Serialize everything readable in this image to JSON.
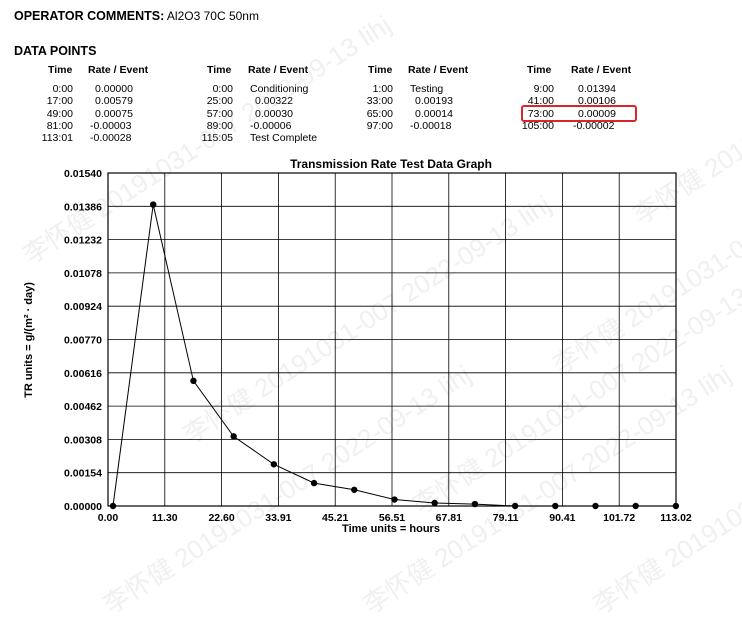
{
  "operator": {
    "label": "OPERATOR COMMENTS:",
    "value": "Al2O3  70C 50nm"
  },
  "data_points": {
    "title": "DATA POINTS",
    "col_time": "Time",
    "col_rate": "Rate / Event",
    "columns": [
      [
        [
          "0:00",
          "0.00000"
        ],
        [
          "17:00",
          "0.00579"
        ],
        [
          "49:00",
          "0.00075"
        ],
        [
          "81:00",
          "-0.00003"
        ],
        [
          "113:01",
          "-0.00028"
        ]
      ],
      [
        [
          "0:00",
          "Conditioning"
        ],
        [
          "25:00",
          "0.00322"
        ],
        [
          "57:00",
          "0.00030"
        ],
        [
          "89:00",
          "-0.00006"
        ],
        [
          "115:05",
          "Test Complete"
        ]
      ],
      [
        [
          "1:00",
          "Testing"
        ],
        [
          "33:00",
          "0.00193"
        ],
        [
          "65:00",
          "0.00014"
        ],
        [
          "97:00",
          "-0.00018"
        ]
      ],
      [
        [
          "9:00",
          "0.01394"
        ],
        [
          "41:00",
          "0.00106"
        ],
        [
          "73:00",
          "0.00009"
        ],
        [
          "105:00",
          "-0.00002"
        ]
      ]
    ]
  },
  "watermark_text": "李怀健 20191031-007 2022-09-13 lihj",
  "colors": {
    "highlight": "#d9262b",
    "line": "#000000",
    "grid": "#000000"
  },
  "chart_data": {
    "type": "line",
    "title": "Transmission Rate Test Data Graph",
    "xlabel": "Time units = hours",
    "ylabel": "TR units = g/(m² · day)",
    "xlim": [
      0,
      113.02
    ],
    "ylim": [
      0,
      0.0154
    ],
    "x_ticks": [
      "0.00",
      "11.30",
      "22.60",
      "33.91",
      "45.21",
      "56.51",
      "67.81",
      "79.11",
      "90.41",
      "101.72",
      "113.02"
    ],
    "y_ticks": [
      "0.00000",
      "0.00154",
      "0.00308",
      "0.00462",
      "0.00616",
      "0.00770",
      "0.00924",
      "0.01078",
      "0.01232",
      "0.01386",
      "0.01540"
    ],
    "grid": true,
    "series": [
      {
        "x": [
          1,
          9,
          17,
          25,
          33,
          41,
          49,
          57,
          65,
          73,
          81,
          89,
          97,
          105,
          113
        ],
        "y": [
          0.0,
          0.01394,
          0.00579,
          0.00322,
          0.00193,
          0.00106,
          0.00075,
          0.0003,
          0.00014,
          9e-05,
          0.0,
          0.0,
          0.0,
          0.0,
          0.0
        ]
      }
    ]
  }
}
